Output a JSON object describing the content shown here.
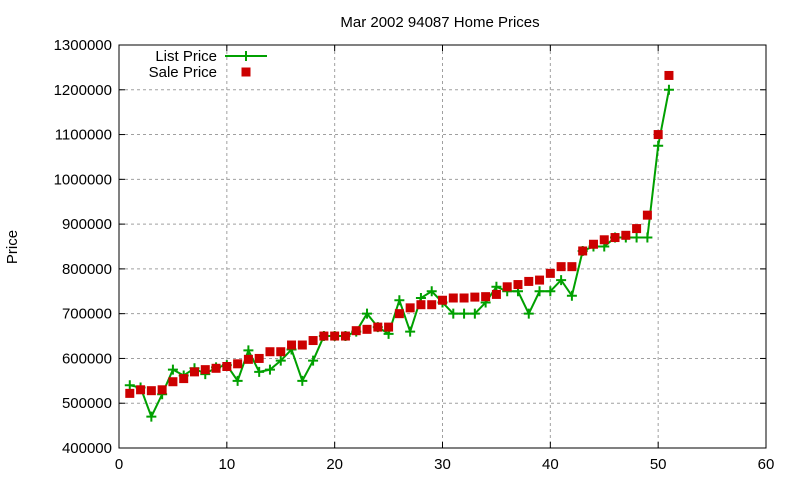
{
  "chart_data": {
    "type": "line",
    "title": "Mar 2002 94087 Home Prices",
    "xlabel": "",
    "ylabel": "Price",
    "xlim": [
      0,
      60
    ],
    "ylim": [
      400000,
      1300000
    ],
    "xticks": [
      0,
      10,
      20,
      30,
      40,
      50,
      60
    ],
    "yticks": [
      400000,
      500000,
      600000,
      700000,
      800000,
      900000,
      1000000,
      1100000,
      1200000,
      1300000
    ],
    "grid": true,
    "legend_position": "top-left",
    "x": [
      1,
      2,
      3,
      4,
      5,
      6,
      7,
      8,
      9,
      10,
      11,
      12,
      13,
      14,
      15,
      16,
      17,
      18,
      19,
      20,
      21,
      22,
      23,
      24,
      25,
      26,
      27,
      28,
      29,
      30,
      31,
      32,
      33,
      34,
      35,
      36,
      37,
      38,
      39,
      40,
      41,
      42,
      43,
      44,
      45,
      46,
      47,
      48,
      49,
      50,
      51
    ],
    "series": [
      {
        "name": "List Price",
        "style": "linespoints",
        "color": "#00a000",
        "values": [
          540000,
          535000,
          470000,
          520000,
          575000,
          562000,
          578000,
          565000,
          580000,
          585000,
          550000,
          618000,
          570000,
          575000,
          595000,
          620000,
          550000,
          595000,
          650000,
          650000,
          650000,
          660000,
          700000,
          670000,
          655000,
          730000,
          660000,
          735000,
          750000,
          725000,
          700000,
          700000,
          700000,
          725000,
          760000,
          750000,
          750000,
          700000,
          750000,
          750000,
          775000,
          740000,
          840000,
          850000,
          850000,
          870000,
          870000,
          870000,
          870000,
          1075000,
          1200000
        ]
      },
      {
        "name": "Sale Price",
        "style": "points",
        "color": "#cc0000",
        "values": [
          522000,
          530000,
          528000,
          530000,
          548000,
          555000,
          570000,
          575000,
          578000,
          582000,
          588000,
          598000,
          600000,
          615000,
          615000,
          630000,
          630000,
          640000,
          650000,
          650000,
          650000,
          662000,
          665000,
          670000,
          670000,
          700000,
          713000,
          720000,
          720000,
          730000,
          735000,
          735000,
          737000,
          738000,
          743000,
          760000,
          765000,
          772000,
          775000,
          790000,
          805000,
          805000,
          840000,
          855000,
          865000,
          870000,
          875000,
          890000,
          920000,
          1100000,
          1232000
        ]
      }
    ]
  }
}
